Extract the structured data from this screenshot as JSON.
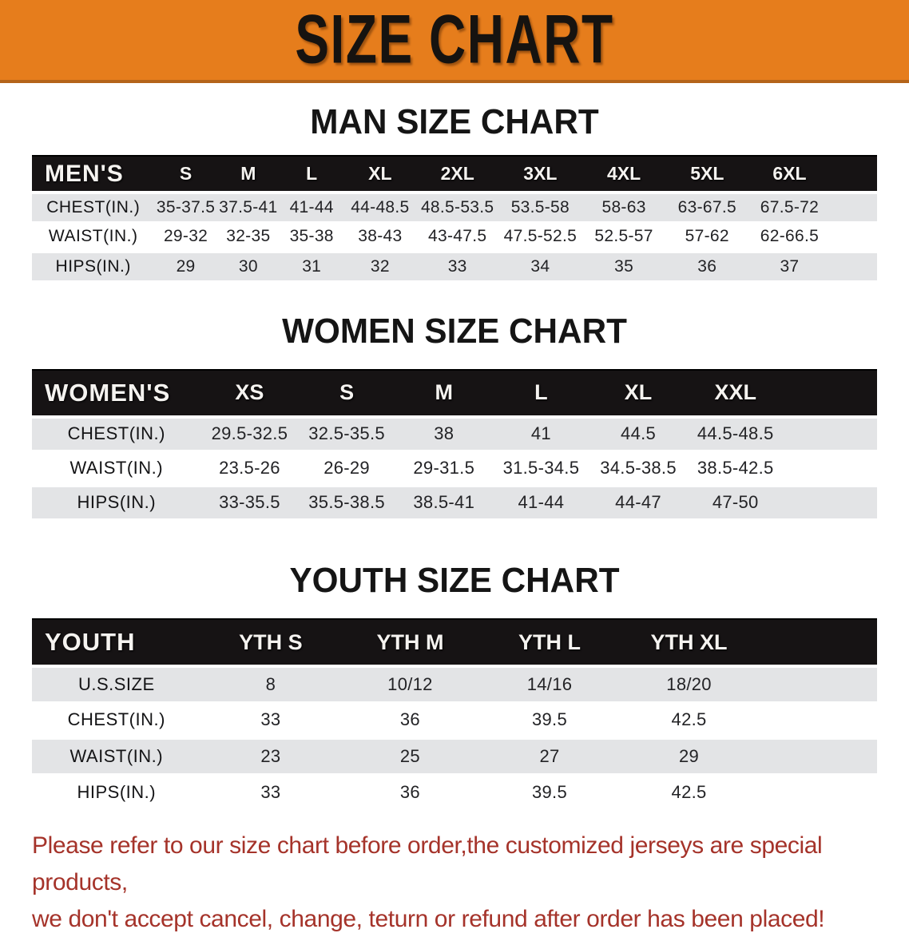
{
  "banner": {
    "title": "SIZE CHART",
    "bg_color": "#e67d1c",
    "text_color": "#161310"
  },
  "sections": [
    {
      "id": "men",
      "title": "MAN SIZE CHART",
      "header_label": "MEN'S",
      "columns": [
        "S",
        "M",
        "L",
        "XL",
        "2XL",
        "3XL",
        "4XL",
        "5XL",
        "6XL"
      ],
      "rows": [
        {
          "label": "CHEST(IN.)",
          "values": [
            "35-37.5",
            "37.5-41",
            "41-44",
            "44-48.5",
            "48.5-53.5",
            "53.5-58",
            "58-63",
            "63-67.5",
            "67.5-72"
          ]
        },
        {
          "label": "WAIST(IN.)",
          "values": [
            "29-32",
            "32-35",
            "35-38",
            "38-43",
            "43-47.5",
            "47.5-52.5",
            "52.5-57",
            "57-62",
            "62-66.5"
          ]
        },
        {
          "label": "HIPS(IN.)",
          "values": [
            "29",
            "30",
            "31",
            "32",
            "33",
            "34",
            "35",
            "36",
            "37"
          ]
        }
      ]
    },
    {
      "id": "women",
      "title": "WOMEN SIZE CHART",
      "header_label": "WOMEN'S",
      "columns": [
        "XS",
        "S",
        "M",
        "L",
        "XL",
        "XXL"
      ],
      "rows": [
        {
          "label": "CHEST(IN.)",
          "values": [
            "29.5-32.5",
            "32.5-35.5",
            "38",
            "41",
            "44.5",
            "44.5-48.5"
          ]
        },
        {
          "label": "WAIST(IN.)",
          "values": [
            "23.5-26",
            "26-29",
            "29-31.5",
            "31.5-34.5",
            "34.5-38.5",
            "38.5-42.5"
          ]
        },
        {
          "label": "HIPS(IN.)",
          "values": [
            "33-35.5",
            "35.5-38.5",
            "38.5-41",
            "41-44",
            "44-47",
            "47-50"
          ]
        }
      ]
    },
    {
      "id": "youth",
      "title": "YOUTH SIZE CHART",
      "header_label": "YOUTH",
      "columns": [
        "YTH S",
        "YTH M",
        "YTH L",
        "YTH XL"
      ],
      "rows": [
        {
          "label": "U.S.SIZE",
          "values": [
            "8",
            "10/12",
            "14/16",
            "18/20"
          ]
        },
        {
          "label": "CHEST(IN.)",
          "values": [
            "33",
            "36",
            "39.5",
            "42.5"
          ]
        },
        {
          "label": "WAIST(IN.)",
          "values": [
            "23",
            "25",
            "27",
            "29"
          ]
        },
        {
          "label": "HIPS(IN.)",
          "values": [
            "33",
            "36",
            "39.5",
            "42.5"
          ]
        }
      ]
    }
  ],
  "footer": {
    "line1": "Please refer to our size chart before order,the customized jerseys are special products,",
    "line2": "we don't accept cancel, change, teturn or refund after order has been placed!",
    "text_color": "#a5332a"
  },
  "colors": {
    "banner_orange": "#e67d1c",
    "banner_edge": "#b4641a",
    "table_header_black": "#161314",
    "stripe_gray": "#e3e4e6",
    "disclaimer_red": "#a5332a"
  }
}
